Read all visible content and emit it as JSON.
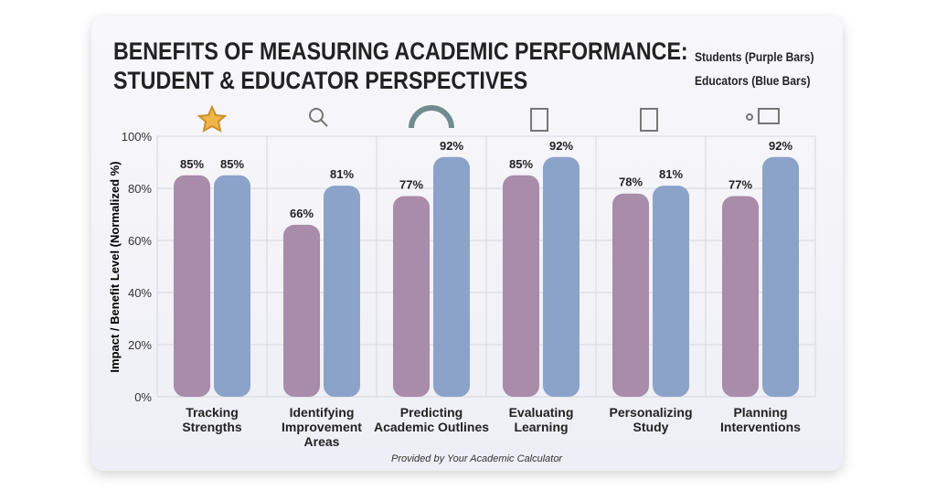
{
  "chart_data": {
    "type": "bar",
    "title": "BENEFITS OF MEASURING ACADEMIC PERFORMANCE:\nSTUDENT & EDUCATOR PERSPECTIVES",
    "y_label": "Impact / Benefit Level (Normalized %)",
    "categories": [
      "Tracking\nStrengths",
      "Identifying\nImprovement\nAreas",
      "Predicting\nAcademic Outlines",
      "Evaluating\nLearning",
      "Personalizing\nStudy",
      "Planning\nInterventions"
    ],
    "series": [
      {
        "name": "Students (Purple Bars)",
        "color": "#a88ca9",
        "values": [
          85,
          66,
          77,
          85,
          78,
          77
        ],
        "value_labels": [
          "85%",
          "66%",
          "77%",
          "85%",
          "78%",
          "77%"
        ]
      },
      {
        "name": "Educators (Blue Bars)",
        "color": "#8ba3c9",
        "values": [
          85,
          81,
          92,
          92,
          81,
          92
        ],
        "value_labels": [
          "85%",
          "81%",
          "92%",
          "92%",
          "81%",
          "92%"
        ]
      }
    ],
    "ylim": [
      0,
      100
    ],
    "yticks": [
      {
        "value": 0,
        "label": "0%"
      },
      {
        "value": 20,
        "label": "20%"
      },
      {
        "value": 40,
        "label": "40%"
      },
      {
        "value": 60,
        "label": "60%"
      },
      {
        "value": 80,
        "label": "80%"
      },
      {
        "value": 100,
        "label": "100%"
      }
    ],
    "grid": true,
    "footer": "Provided by Your Academic Calculator"
  }
}
